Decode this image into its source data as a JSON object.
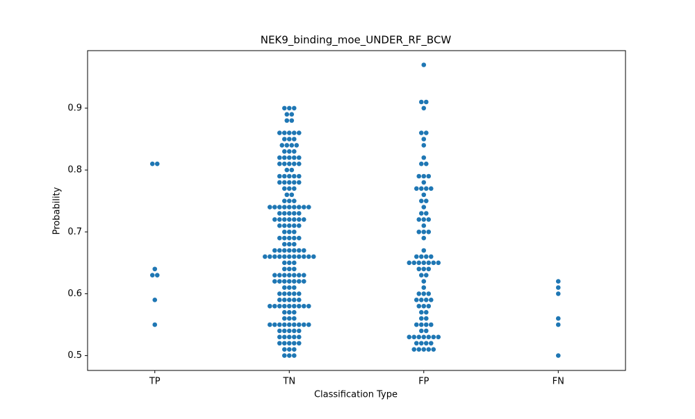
{
  "chart_data": {
    "type": "swarm",
    "title": "NEK9_binding_moe_UNDER_RF_BCW",
    "x_label": "Classification Type",
    "y_label": "Probability",
    "categories": [
      "TP",
      "TN",
      "FP",
      "FN"
    ],
    "color": "#1f77b4",
    "ylim": [
      0.476,
      0.993
    ],
    "yticks": [
      0.5,
      0.6,
      0.7,
      0.8,
      0.9
    ],
    "grid": false,
    "values": [
      [
        0.81,
        0.81,
        0.64,
        0.63,
        0.63,
        0.59,
        0.55
      ],
      [
        0.9,
        0.9,
        0.9,
        0.89,
        0.89,
        0.88,
        0.88,
        0.86,
        0.86,
        0.86,
        0.86,
        0.86,
        0.85,
        0.85,
        0.85,
        0.84,
        0.84,
        0.84,
        0.84,
        0.83,
        0.83,
        0.83,
        0.82,
        0.82,
        0.82,
        0.82,
        0.82,
        0.81,
        0.81,
        0.81,
        0.81,
        0.81,
        0.8,
        0.8,
        0.79,
        0.79,
        0.79,
        0.79,
        0.79,
        0.78,
        0.78,
        0.78,
        0.78,
        0.78,
        0.77,
        0.77,
        0.77,
        0.76,
        0.76,
        0.75,
        0.75,
        0.75,
        0.74,
        0.74,
        0.74,
        0.74,
        0.74,
        0.74,
        0.74,
        0.74,
        0.74,
        0.73,
        0.73,
        0.73,
        0.73,
        0.73,
        0.72,
        0.72,
        0.72,
        0.72,
        0.72,
        0.72,
        0.72,
        0.71,
        0.71,
        0.71,
        0.71,
        0.71,
        0.7,
        0.7,
        0.7,
        0.69,
        0.69,
        0.69,
        0.69,
        0.69,
        0.68,
        0.68,
        0.68,
        0.67,
        0.67,
        0.67,
        0.67,
        0.67,
        0.67,
        0.67,
        0.66,
        0.66,
        0.66,
        0.66,
        0.66,
        0.66,
        0.66,
        0.66,
        0.66,
        0.66,
        0.66,
        0.65,
        0.65,
        0.65,
        0.64,
        0.64,
        0.64,
        0.63,
        0.63,
        0.63,
        0.63,
        0.63,
        0.63,
        0.63,
        0.62,
        0.62,
        0.62,
        0.62,
        0.62,
        0.62,
        0.62,
        0.61,
        0.61,
        0.61,
        0.6,
        0.6,
        0.6,
        0.6,
        0.6,
        0.59,
        0.59,
        0.59,
        0.59,
        0.59,
        0.58,
        0.58,
        0.58,
        0.58,
        0.58,
        0.58,
        0.58,
        0.58,
        0.58,
        0.57,
        0.57,
        0.57,
        0.56,
        0.56,
        0.56,
        0.55,
        0.55,
        0.55,
        0.55,
        0.55,
        0.55,
        0.55,
        0.55,
        0.55,
        0.54,
        0.54,
        0.54,
        0.54,
        0.54,
        0.53,
        0.53,
        0.53,
        0.53,
        0.53,
        0.52,
        0.52,
        0.52,
        0.52,
        0.52,
        0.51,
        0.51,
        0.51,
        0.5,
        0.5,
        0.5
      ],
      [
        0.97,
        0.91,
        0.91,
        0.9,
        0.86,
        0.86,
        0.85,
        0.84,
        0.82,
        0.81,
        0.81,
        0.79,
        0.79,
        0.79,
        0.78,
        0.77,
        0.77,
        0.77,
        0.77,
        0.76,
        0.75,
        0.75,
        0.74,
        0.73,
        0.73,
        0.72,
        0.72,
        0.72,
        0.71,
        0.7,
        0.7,
        0.7,
        0.69,
        0.67,
        0.66,
        0.66,
        0.66,
        0.66,
        0.65,
        0.65,
        0.65,
        0.65,
        0.65,
        0.65,
        0.65,
        0.64,
        0.64,
        0.64,
        0.63,
        0.63,
        0.62,
        0.61,
        0.6,
        0.6,
        0.6,
        0.59,
        0.59,
        0.59,
        0.59,
        0.58,
        0.58,
        0.58,
        0.57,
        0.57,
        0.56,
        0.56,
        0.55,
        0.55,
        0.55,
        0.55,
        0.54,
        0.54,
        0.53,
        0.53,
        0.53,
        0.53,
        0.53,
        0.53,
        0.53,
        0.52,
        0.52,
        0.52,
        0.52,
        0.51,
        0.51,
        0.51,
        0.51,
        0.51
      ],
      [
        0.62,
        0.61,
        0.6,
        0.56,
        0.55,
        0.5
      ]
    ]
  }
}
